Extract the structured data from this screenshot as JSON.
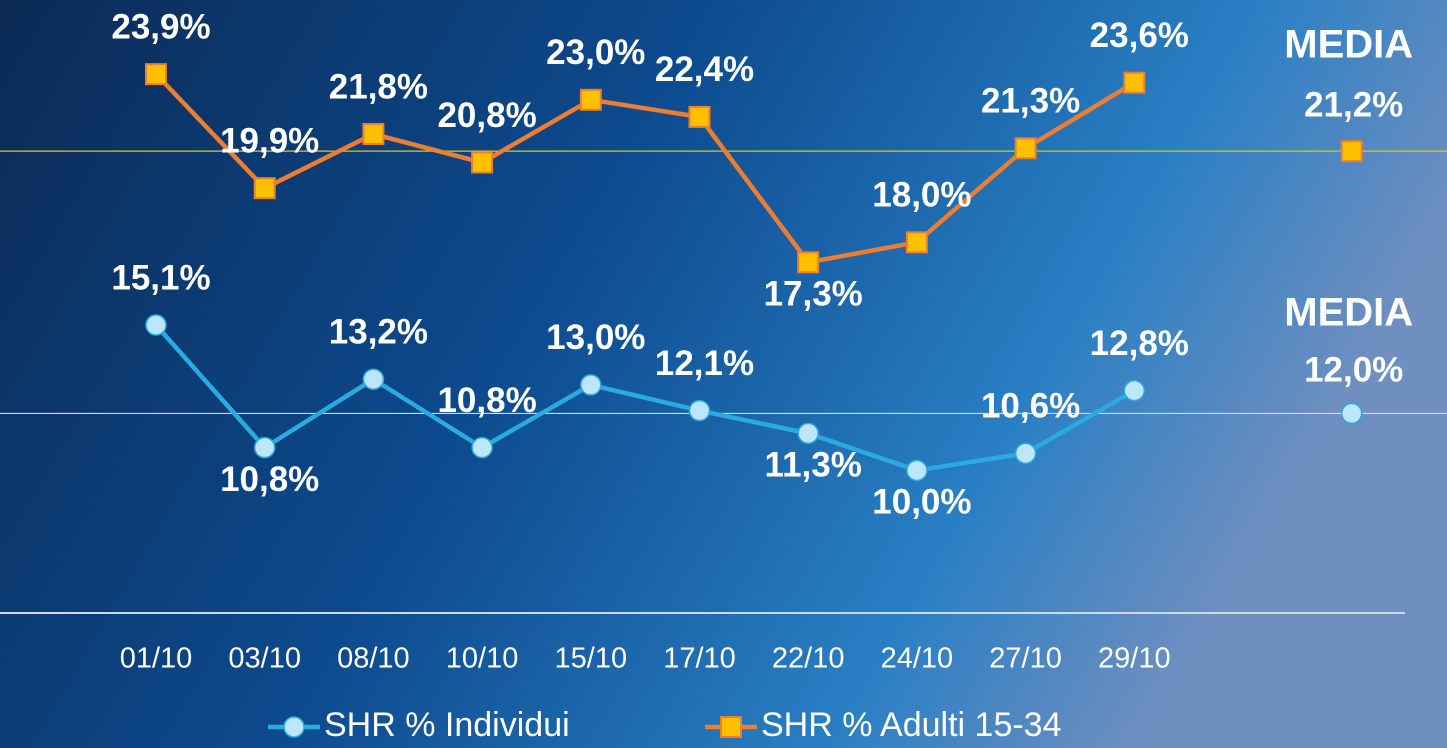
{
  "chart_data": {
    "type": "line",
    "categories": [
      "01/10",
      "03/10",
      "08/10",
      "10/10",
      "15/10",
      "17/10",
      "22/10",
      "24/10",
      "27/10",
      "29/10"
    ],
    "ylim": [
      5,
      26.5
    ],
    "series": [
      {
        "name": "SHR % Individui",
        "color": "#29abe2",
        "marker_color": "#bde6fa",
        "values": [
          15.1,
          10.8,
          13.2,
          10.8,
          13.0,
          12.1,
          11.3,
          10.0,
          10.6,
          12.8
        ],
        "value_labels": [
          "15,1%",
          "10,8%",
          "13,2%",
          "10,8%",
          "13,0%",
          "12,1%",
          "11,3%",
          "10,0%",
          "10,6%",
          "12,8%"
        ],
        "average_title": "MEDIA",
        "average": 12.0,
        "average_label": "12,0%",
        "average_line_color": "#c9dcf0"
      },
      {
        "name": "SHR % Adulti 15-34",
        "color": "#ed7d31",
        "marker_color": "#ffc000",
        "values": [
          23.9,
          19.9,
          21.8,
          20.8,
          23.0,
          22.4,
          17.3,
          18.0,
          21.3,
          23.6
        ],
        "value_labels": [
          "23,9%",
          "19,9%",
          "21,8%",
          "20,8%",
          "23,0%",
          "22,4%",
          "17,3%",
          "18,0%",
          "21,3%",
          "23,6%"
        ],
        "average_title": "MEDIA",
        "average": 21.2,
        "average_label": "21,2%",
        "average_line_color": "#e8c020"
      }
    ]
  }
}
